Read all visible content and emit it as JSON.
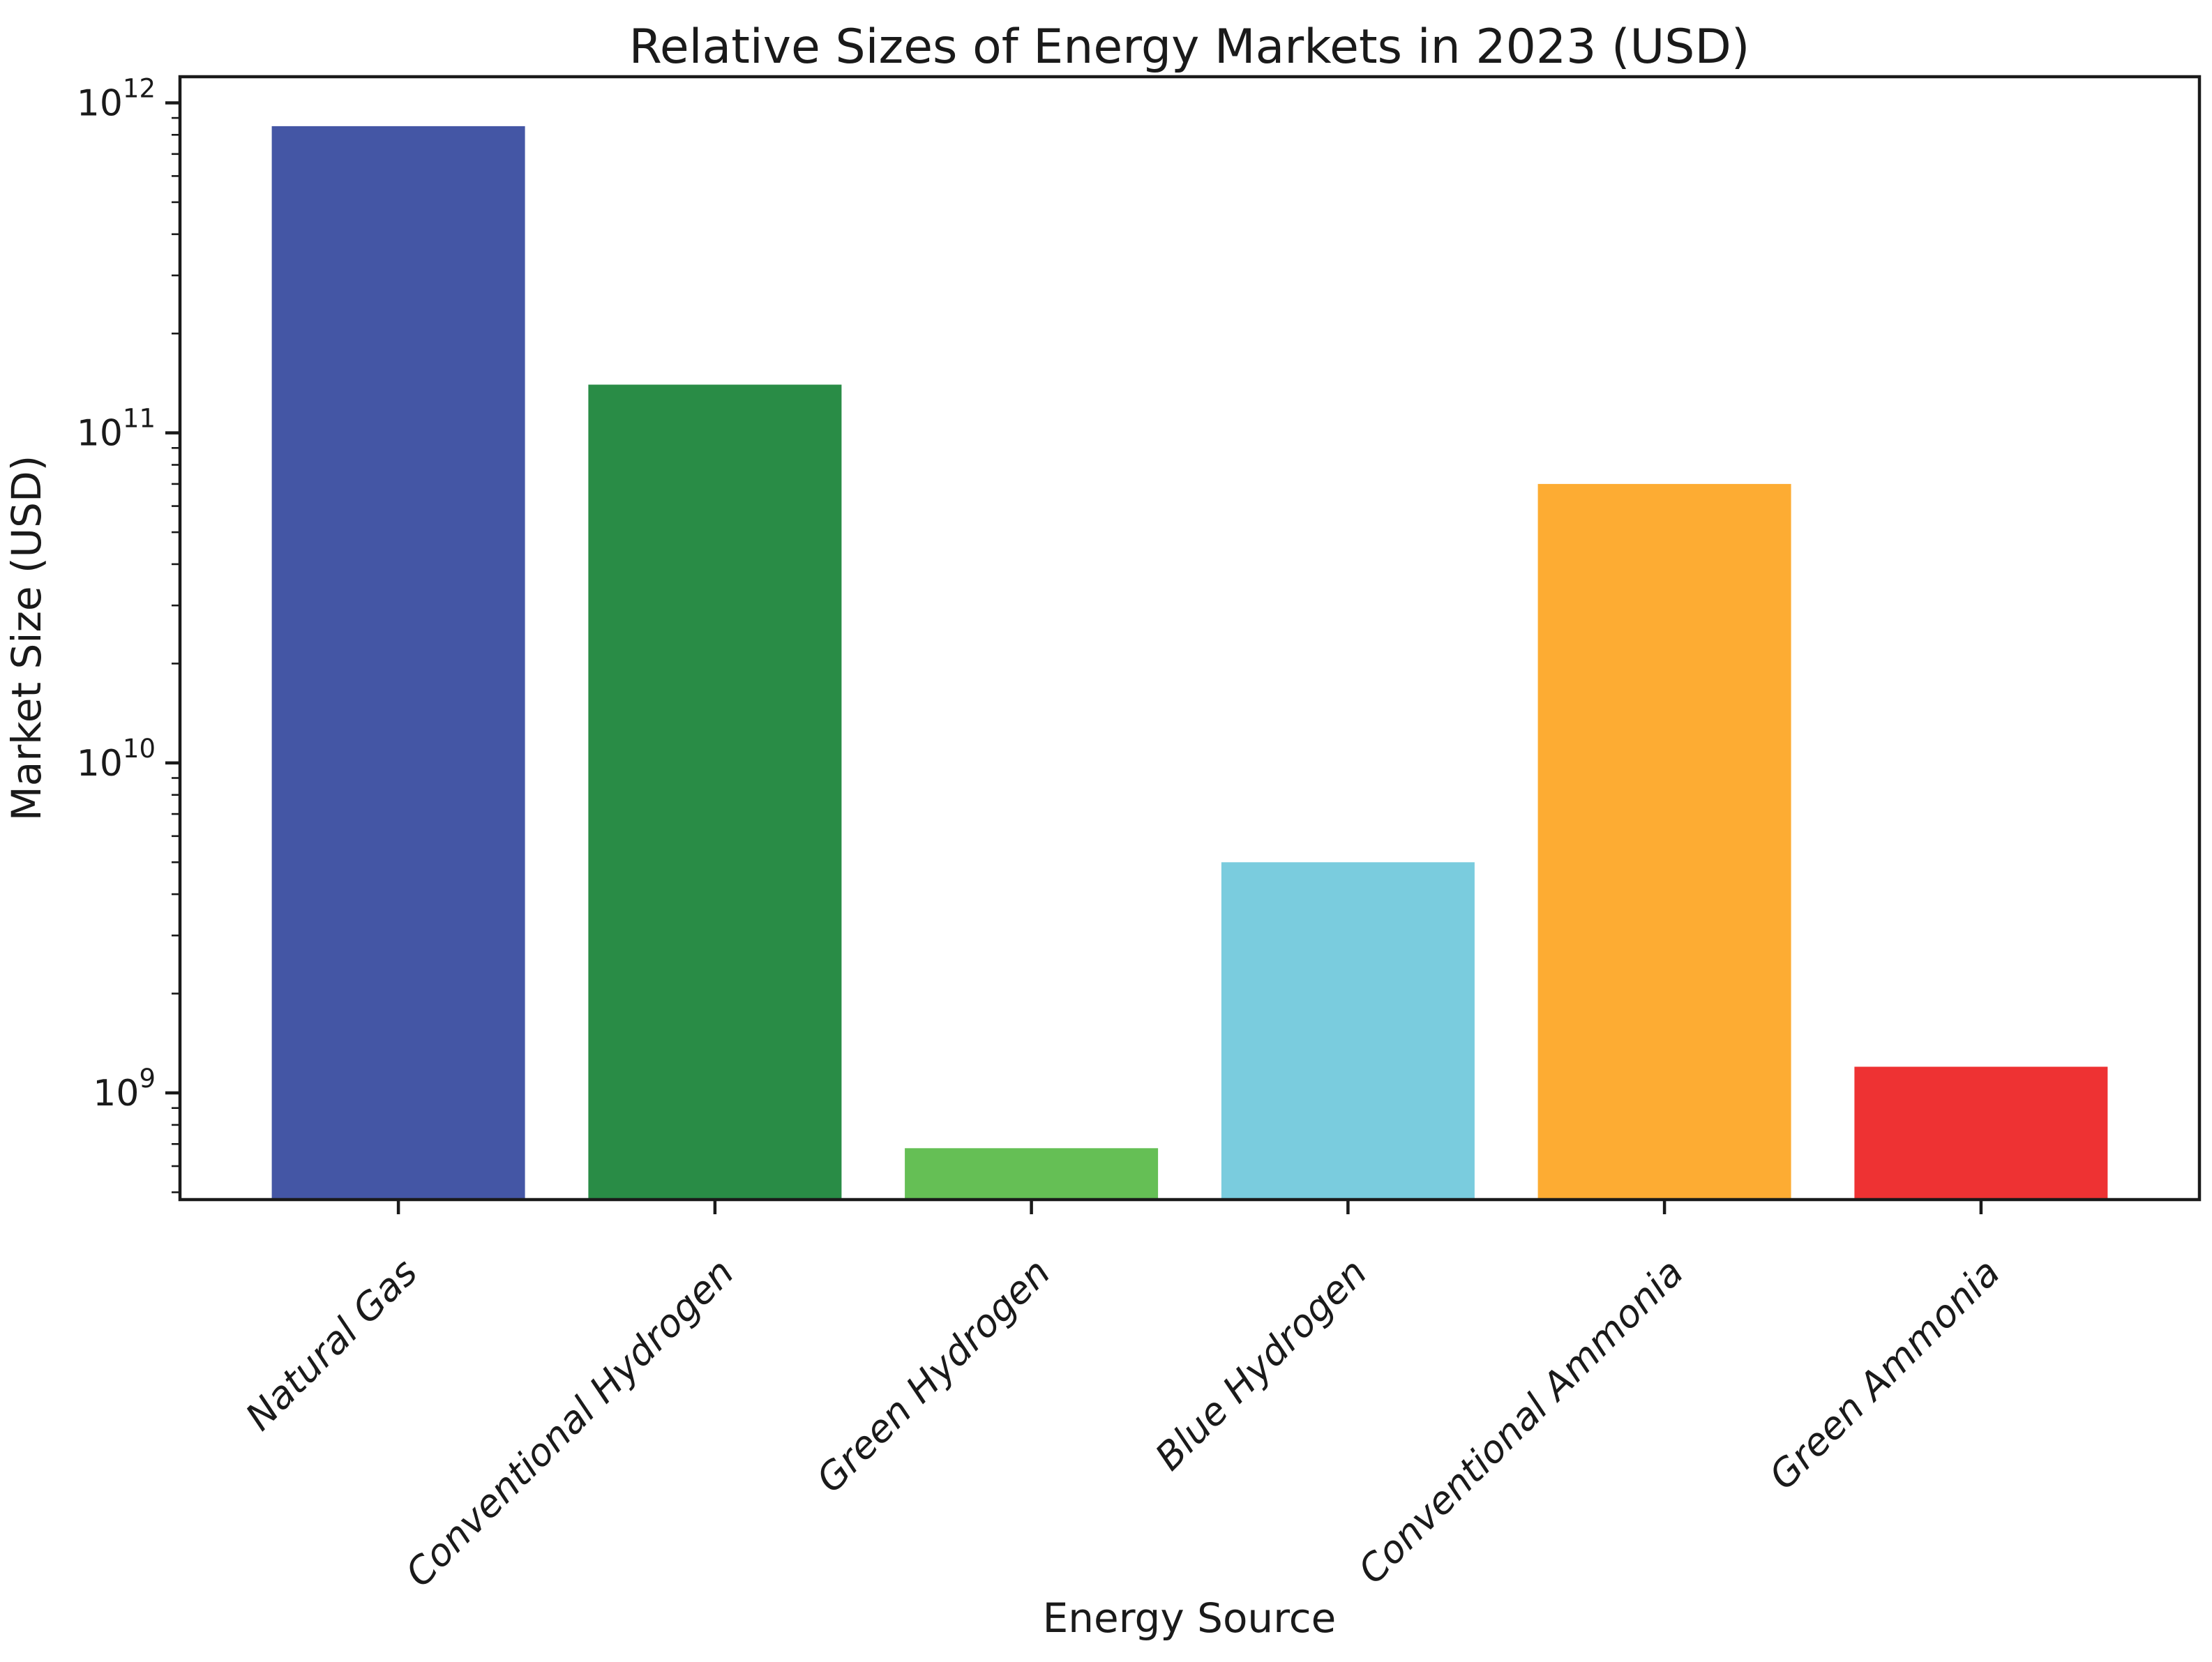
{
  "figure": {
    "background": "#ffffff",
    "text_color": "#1a1a1a"
  },
  "chart_data": {
    "type": "bar",
    "title": "Relative Sizes of Energy Markets in 2023 (USD)",
    "xlabel": "Energy Source",
    "ylabel": "Market Size (USD)",
    "categories": [
      "Natural Gas",
      "Conventional Hydrogen",
      "Green Hydrogen",
      "Blue Hydrogen",
      "Conventional Ammonia",
      "Green Ammonia"
    ],
    "values": [
      850000000000,
      140000000000,
      680000000,
      5000000000,
      70000000000,
      1200000000
    ],
    "bar_colors": [
      "#4456a5",
      "#298c46",
      "#65bf55",
      "#7accde",
      "#fdac33",
      "#ee3233"
    ],
    "yscale": "log",
    "ylim": [
      475000000,
      1200000000000
    ],
    "y_major_tick_exponents": [
      9,
      10,
      11,
      12
    ],
    "y_minor_ticks": "2-9 multiples per decade",
    "bar_width_fraction": 0.8,
    "grid": false,
    "legend": false,
    "axis_color": "#1a1a1a",
    "x_tick_label_style": "italic",
    "x_tick_label_rotation_deg": 45
  }
}
